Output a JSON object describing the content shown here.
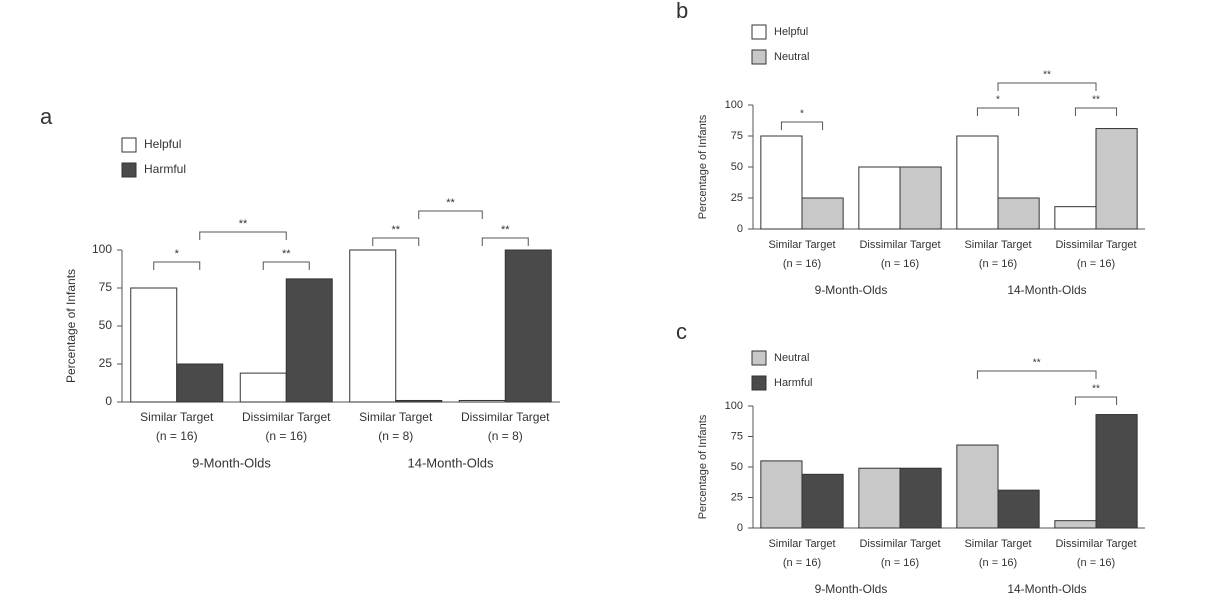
{
  "chart_data": [
    {
      "panel": "a",
      "type": "bar",
      "y_label": "Percentage of Infants",
      "categories": [
        "Similar Target",
        "Dissimilar Target",
        "Similar Target",
        "Dissimilar Target"
      ],
      "sample_sizes": [
        "(n = 16)",
        "(n = 16)",
        "(n = 8)",
        "(n = 8)"
      ],
      "groups": [
        "9-Month-Olds",
        "14-Month-Olds"
      ],
      "series": [
        {
          "name": "Helpful",
          "color": "#ffffff",
          "values": [
            75,
            19,
            100,
            1
          ]
        },
        {
          "name": "Harmful",
          "color": "#4a4a4a",
          "values": [
            25,
            81,
            1,
            100
          ]
        }
      ],
      "ylim": [
        0,
        100
      ],
      "yticks": [
        0,
        25,
        50,
        75,
        100
      ],
      "annotations": [
        "*",
        "**",
        "**",
        "**",
        "**",
        "**"
      ]
    },
    {
      "panel": "b",
      "type": "bar",
      "y_label": "Percentage of Infants",
      "categories": [
        "Similar Target",
        "Dissimilar Target",
        "Similar Target",
        "Dissimilar Target"
      ],
      "sample_sizes": [
        "(n = 16)",
        "(n = 16)",
        "(n = 16)",
        "(n = 16)"
      ],
      "groups": [
        "9-Month-Olds",
        "14-Month-Olds"
      ],
      "series": [
        {
          "name": "Helpful",
          "color": "#ffffff",
          "values": [
            75,
            50,
            75,
            18
          ]
        },
        {
          "name": "Neutral",
          "color": "#c8c8c8",
          "values": [
            25,
            50,
            25,
            81
          ]
        }
      ],
      "ylim": [
        0,
        100
      ],
      "yticks": [
        0,
        25,
        50,
        75,
        100
      ],
      "annotations": [
        "*",
        "**",
        "*",
        "**"
      ]
    },
    {
      "panel": "c",
      "type": "bar",
      "y_label": "Percentage of Infants",
      "categories": [
        "Similar Target",
        "Dissimilar Target",
        "Similar Target",
        "Dissimilar Target"
      ],
      "sample_sizes": [
        "(n = 16)",
        "(n = 16)",
        "(n = 16)",
        "(n = 16)"
      ],
      "groups": [
        "9-Month-Olds",
        "14-Month-Olds"
      ],
      "series": [
        {
          "name": "Neutral",
          "color": "#c8c8c8",
          "values": [
            55,
            49,
            68,
            6
          ]
        },
        {
          "name": "Harmful",
          "color": "#4a4a4a",
          "values": [
            44,
            49,
            31,
            93
          ]
        }
      ],
      "ylim": [
        0,
        100
      ],
      "yticks": [
        0,
        25,
        50,
        75,
        100
      ],
      "annotations": [
        "**",
        "**"
      ]
    }
  ]
}
